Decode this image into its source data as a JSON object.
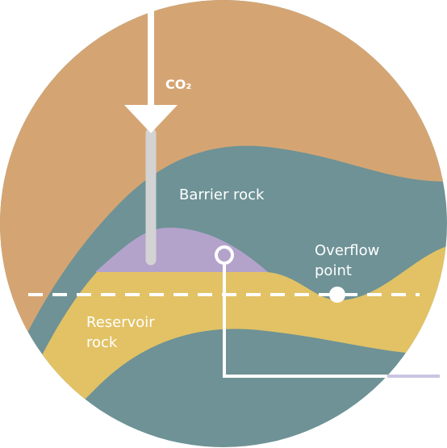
{
  "labels": {
    "gas": "CO₂",
    "barrier": "Barrier rock",
    "overflow": [
      "Overflow",
      "point"
    ],
    "reservoir": [
      "Reservoir",
      "rock"
    ]
  }
}
